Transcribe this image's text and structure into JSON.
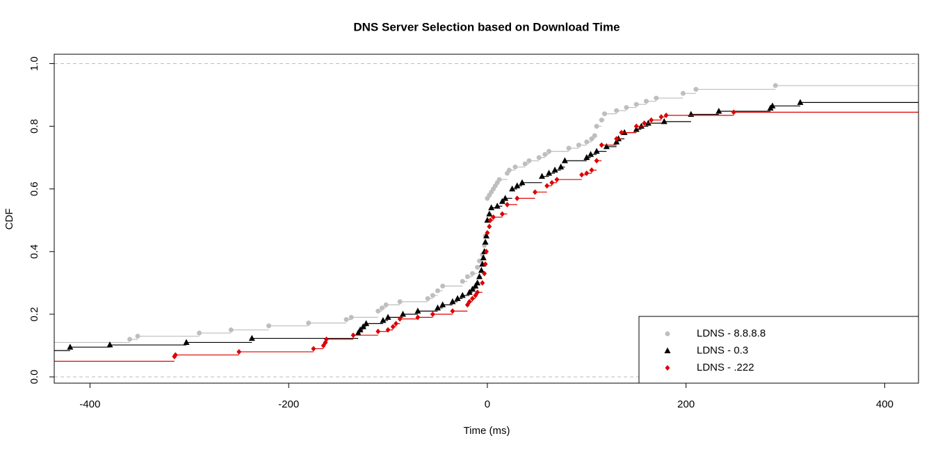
{
  "chart_data": {
    "type": "ecdf-step",
    "title": "DNS Server Selection based on Download Time",
    "xlabel": "Time (ms)",
    "ylabel": "CDF",
    "xlim": [
      -436,
      434
    ],
    "ylim": [
      -0.02,
      1.03
    ],
    "xticks": [
      -400,
      -200,
      0,
      200,
      400
    ],
    "yticks": [
      {
        "value": 0,
        "label": "0.0"
      },
      0.2,
      0.4,
      0.6,
      0.8,
      {
        "value": 1,
        "label": "1.0"
      }
    ],
    "hlines": [
      0,
      1
    ],
    "legend": "bottomright",
    "series": [
      {
        "name": "LDNS - 8.8.8.8",
        "color": "#bebebe",
        "marker": "circle",
        "x": [
          -460,
          -360,
          -352,
          -290,
          -258,
          -220,
          -180,
          -142,
          -137,
          -110,
          -106,
          -102,
          -88,
          -60,
          -55,
          -50,
          -45,
          -25,
          -20,
          -15,
          -10,
          -8,
          -5,
          -3,
          -2,
          0,
          2,
          4,
          6,
          8,
          10,
          12,
          20,
          22,
          28,
          38,
          42,
          52,
          58,
          62,
          82,
          92,
          100,
          105,
          108,
          110,
          115,
          118,
          130,
          140,
          150,
          160,
          170,
          197,
          210,
          290
        ],
        "values": [
          0.11,
          0.12,
          0.13,
          0.14,
          0.15,
          0.163,
          0.172,
          0.183,
          0.19,
          0.21,
          0.22,
          0.23,
          0.24,
          0.25,
          0.26,
          0.275,
          0.29,
          0.305,
          0.32,
          0.33,
          0.35,
          0.37,
          0.39,
          0.42,
          0.45,
          0.57,
          0.58,
          0.59,
          0.6,
          0.61,
          0.62,
          0.63,
          0.65,
          0.66,
          0.67,
          0.68,
          0.69,
          0.7,
          0.71,
          0.72,
          0.73,
          0.74,
          0.75,
          0.76,
          0.77,
          0.8,
          0.82,
          0.84,
          0.85,
          0.86,
          0.87,
          0.88,
          0.89,
          0.905,
          0.918,
          0.93
        ]
      },
      {
        "name": "LDNS - 0.3",
        "color": "#000000",
        "marker": "triangle",
        "x": [
          -460,
          -420,
          -380,
          -303,
          -237,
          -130,
          -128,
          -125,
          -122,
          -105,
          -100,
          -85,
          -70,
          -50,
          -45,
          -35,
          -30,
          -25,
          -18,
          -15,
          -12,
          -10,
          -8,
          -6,
          -5,
          -4,
          -3,
          -2,
          -1,
          0,
          2,
          4,
          10,
          15,
          18,
          25,
          30,
          35,
          55,
          62,
          68,
          74,
          78,
          100,
          104,
          110,
          120,
          130,
          132,
          138,
          150,
          155,
          162,
          178,
          205,
          233,
          285,
          287,
          315
        ],
        "values": [
          0.084,
          0.095,
          0.102,
          0.11,
          0.123,
          0.14,
          0.15,
          0.16,
          0.17,
          0.18,
          0.19,
          0.2,
          0.21,
          0.22,
          0.23,
          0.24,
          0.25,
          0.26,
          0.27,
          0.28,
          0.29,
          0.3,
          0.32,
          0.34,
          0.36,
          0.38,
          0.4,
          0.43,
          0.45,
          0.5,
          0.52,
          0.54,
          0.545,
          0.56,
          0.57,
          0.6,
          0.61,
          0.62,
          0.64,
          0.65,
          0.66,
          0.67,
          0.69,
          0.7,
          0.71,
          0.72,
          0.735,
          0.75,
          0.76,
          0.78,
          0.79,
          0.8,
          0.81,
          0.815,
          0.838,
          0.848,
          0.858,
          0.865,
          0.876
        ]
      },
      {
        "name": "LDNS - .222",
        "color": "#dd0000",
        "marker": "diamond",
        "x": [
          -460,
          -315,
          -314,
          -250,
          -175,
          -165,
          -163,
          -162,
          -135,
          -110,
          -100,
          -95,
          -92,
          -88,
          -70,
          -55,
          -35,
          -20,
          -18,
          -15,
          -12,
          -10,
          -5,
          -3,
          -2,
          -1,
          0,
          2,
          3,
          6,
          15,
          20,
          30,
          48,
          60,
          65,
          70,
          95,
          100,
          105,
          110,
          115,
          130,
          135,
          150,
          158,
          165,
          175,
          180,
          248
        ],
        "values": [
          0.05,
          0.065,
          0.07,
          0.08,
          0.09,
          0.1,
          0.11,
          0.12,
          0.133,
          0.145,
          0.15,
          0.16,
          0.17,
          0.185,
          0.19,
          0.2,
          0.21,
          0.23,
          0.24,
          0.25,
          0.26,
          0.27,
          0.3,
          0.33,
          0.36,
          0.4,
          0.46,
          0.48,
          0.5,
          0.51,
          0.52,
          0.55,
          0.57,
          0.59,
          0.61,
          0.62,
          0.63,
          0.645,
          0.65,
          0.66,
          0.69,
          0.74,
          0.76,
          0.78,
          0.8,
          0.81,
          0.82,
          0.83,
          0.835,
          0.845
        ]
      }
    ]
  }
}
